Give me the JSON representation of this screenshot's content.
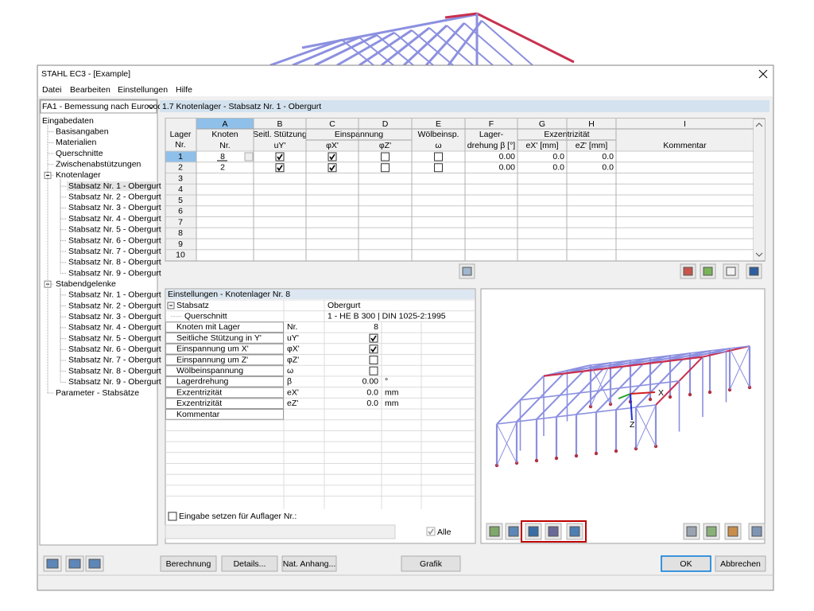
{
  "window": {
    "title": "STAHL EC3 - [Example]"
  },
  "menu": [
    "Datei",
    "Bearbeiten",
    "Einstellungen",
    "Hilfe"
  ],
  "navigator": {
    "case": "FA1 - Bemessung nach Eurocod",
    "tree": [
      {
        "label": "Eingabedaten",
        "children": [
          {
            "label": "Basisangaben"
          },
          {
            "label": "Materialien"
          },
          {
            "label": "Querschnitte"
          },
          {
            "label": "Zwischenabstützungen"
          },
          {
            "label": "Knotenlager",
            "children": [
              {
                "label": "Stabsatz Nr. 1 - Obergurt"
              },
              {
                "label": "Stabsatz Nr. 2 - Obergurt"
              },
              {
                "label": "Stabsatz Nr. 3 - Obergurt"
              },
              {
                "label": "Stabsatz Nr. 4 - Obergurt"
              },
              {
                "label": "Stabsatz Nr. 5 - Obergurt"
              },
              {
                "label": "Stabsatz Nr. 6 - Obergurt"
              },
              {
                "label": "Stabsatz Nr. 7 - Obergurt"
              },
              {
                "label": "Stabsatz Nr. 8 - Obergurt"
              },
              {
                "label": "Stabsatz Nr. 9 - Obergurt"
              }
            ]
          },
          {
            "label": "Stabendgelenke",
            "children": [
              {
                "label": "Stabsatz Nr. 1 - Obergurt"
              },
              {
                "label": "Stabsatz Nr. 2 - Obergurt"
              },
              {
                "label": "Stabsatz Nr. 3 - Obergurt"
              },
              {
                "label": "Stabsatz Nr. 4 - Obergurt"
              },
              {
                "label": "Stabsatz Nr. 5 - Obergurt"
              },
              {
                "label": "Stabsatz Nr. 6 - Obergurt"
              },
              {
                "label": "Stabsatz Nr. 7 - Obergurt"
              },
              {
                "label": "Stabsatz Nr. 8 - Obergurt"
              },
              {
                "label": "Stabsatz Nr. 9 - Obergurt"
              }
            ]
          },
          {
            "label": "Parameter - Stabsätze"
          }
        ]
      }
    ]
  },
  "panel": {
    "title": "1.7 Knotenlager - Stabsatz Nr. 1 - Obergurt"
  },
  "table": {
    "column_letters": [
      "A",
      "B",
      "C",
      "D",
      "E",
      "F",
      "G",
      "H",
      "I"
    ],
    "header": {
      "row_label": [
        "Lager",
        "Nr."
      ],
      "columns": [
        {
          "top": "Knoten",
          "sub": "Nr."
        },
        {
          "top": "Seitl. Stützung",
          "sub": "uY'"
        },
        {
          "group": "Einspannung",
          "columns": [
            {
              "sub": "φX'"
            },
            {
              "sub": "φZ'"
            }
          ]
        },
        {
          "top": "Wölbeinsp.",
          "sub": "ω"
        },
        {
          "top": "Lager-",
          "sub": "drehung β [°]"
        },
        {
          "group": "Exzentrizität",
          "columns": [
            {
              "sub": "eX' [mm]"
            },
            {
              "sub": "eZ' [mm]"
            }
          ]
        },
        {
          "sub": "Kommentar"
        }
      ]
    },
    "row_numbers": [
      1,
      2,
      3,
      4,
      5,
      6,
      7,
      8,
      9,
      10
    ],
    "rows": [
      [
        "8",
        true,
        true,
        false,
        false,
        "0.00",
        "0.0",
        "0.0"
      ],
      [
        "2",
        true,
        true,
        false,
        false,
        "0.00",
        "0.0",
        "0.0"
      ]
    ]
  },
  "settings": {
    "title": "Einstellungen - Knotenlager Nr. 8",
    "rows": [
      {
        "name": "Stabsatz",
        "value": "Obergurt"
      },
      {
        "name": "Querschnitt",
        "value": "1 - HE B 300 | DIN 1025-2:1995"
      },
      {
        "name": "Knoten mit Lager",
        "symbol": "Nr.",
        "value": "8"
      },
      {
        "name": "Seitliche Stützung in Y'",
        "symbol": "uY'",
        "checked": true
      },
      {
        "name": "Einspannung um X'",
        "symbol": "φX'",
        "checked": true
      },
      {
        "name": "Einspannung um Z'",
        "symbol": "φZ'",
        "checked": false
      },
      {
        "name": "Wölbeinspannung",
        "symbol": "ω",
        "checked": false
      },
      {
        "name": "Lagerdrehung",
        "symbol": "β",
        "value": "0.00",
        "unit": "°"
      },
      {
        "name": "Exzentrizität",
        "symbol": "eX'",
        "value": "0.0",
        "unit": "mm"
      },
      {
        "name": "Exzentrizität",
        "symbol": "eZ'",
        "value": "0.0",
        "unit": "mm"
      },
      {
        "name": "Kommentar"
      }
    ]
  },
  "input_options": {
    "set_label": "Eingabe setzen für Auflager Nr.:",
    "set_checked": false,
    "all_label": "Alle",
    "all_checked": true
  },
  "graphic": {
    "axes": [
      "X",
      "Z"
    ]
  },
  "buttons": [
    "Berechnung",
    "Details...",
    "Nat. Anhang...",
    "Grafik",
    "OK",
    "Abbrechen"
  ]
}
